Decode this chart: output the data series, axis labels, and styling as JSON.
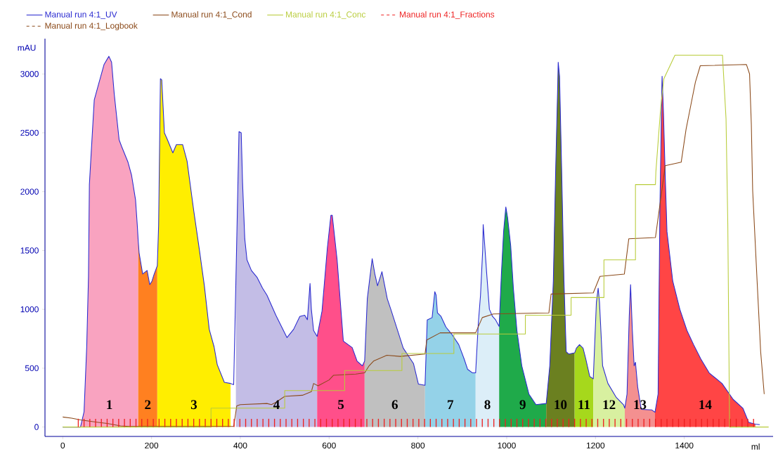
{
  "chart_data": {
    "type": "line",
    "xlabel": "ml",
    "ylabel": "mAU",
    "xlim": [
      -40,
      1600
    ],
    "ylim": [
      -80,
      3300
    ],
    "xticks": [
      0,
      200,
      400,
      600,
      800,
      1000,
      1200,
      1400
    ],
    "yticks": [
      0,
      500,
      1000,
      1500,
      2000,
      2500,
      3000
    ],
    "legend": "top left",
    "series": [
      {
        "type": "area",
        "color": "#f9a3c0",
        "x": [
          40,
          48,
          54,
          58,
          60,
          71,
          82,
          93,
          104,
          110,
          116,
          127,
          133,
          147,
          155,
          164,
          168,
          170
        ],
        "values": [
          0,
          130,
          680,
          1280,
          2060,
          2780,
          2930,
          3080,
          3150,
          3100,
          2830,
          2440,
          2380,
          2250,
          2140,
          1930,
          1710,
          1580
        ]
      },
      {
        "type": "area",
        "color": "#ff8020",
        "x": [
          170,
          172,
          180,
          190,
          196,
          201,
          206,
          213
        ],
        "values": [
          1580,
          1480,
          1300,
          1330,
          1210,
          1240,
          1300,
          1370
        ]
      },
      {
        "type": "area",
        "color": "#ffee00",
        "x": [
          213,
          216,
          220,
          223,
          229,
          236,
          248,
          256,
          270,
          280,
          295,
          308,
          319,
          330,
          341,
          348,
          364,
          378
        ],
        "values": [
          1370,
          1716,
          2960,
          2950,
          2500,
          2440,
          2330,
          2400,
          2400,
          2260,
          1840,
          1500,
          1200,
          830,
          680,
          530,
          380,
          370
        ]
      },
      {
        "type": "area",
        "color": "#c3bde6",
        "x": [
          390,
          397,
          402,
          405,
          410,
          415,
          425,
          438,
          450,
          460,
          480,
          505,
          520,
          534,
          545,
          551,
          557,
          560,
          565,
          573
        ],
        "values": [
          1240,
          2510,
          2500,
          2080,
          1600,
          1420,
          1330,
          1270,
          1180,
          1120,
          950,
          760,
          830,
          940,
          950,
          912,
          1220,
          1000,
          820,
          770
        ]
      },
      {
        "type": "area",
        "color": "#ff4f8a",
        "x": [
          573,
          584,
          596,
          604,
          607,
          618,
          632,
          652,
          663,
          675,
          680
        ],
        "values": [
          770,
          985,
          1520,
          1800,
          1800,
          1420,
          730,
          675,
          560,
          520,
          560
        ]
      },
      {
        "type": "area",
        "color": "#c0c0c0",
        "x": [
          680,
          686,
          697,
          703,
          709,
          719,
          731,
          739,
          767,
          790,
          801,
          816
        ],
        "values": [
          560,
          1090,
          1430,
          1300,
          1200,
          1320,
          1090,
          1000,
          670,
          540,
          365,
          355
        ]
      },
      {
        "type": "area",
        "color": "#94d2e8",
        "x": [
          816,
          821,
          832,
          838,
          841,
          844,
          852,
          863,
          876,
          892,
          904,
          912,
          923,
          930
        ],
        "values": [
          355,
          910,
          930,
          1150,
          1120,
          970,
          940,
          850,
          790,
          700,
          580,
          490,
          460,
          460
        ]
      },
      {
        "type": "area",
        "color": "#dceef8",
        "x": [
          930,
          936,
          941,
          946,
          947,
          950,
          955,
          961,
          968,
          975,
          983
        ],
        "values": [
          460,
          880,
          1120,
          1510,
          1720,
          1570,
          1300,
          1000,
          940,
          910,
          855
        ]
      },
      {
        "type": "area",
        "color": "#1faa4a",
        "x": [
          983,
          988,
          993,
          998,
          1002,
          1009,
          1015,
          1023,
          1034,
          1050,
          1066,
          1089
        ],
        "values": [
          855,
          1300,
          1660,
          1870,
          1780,
          1540,
          1180,
          820,
          520,
          280,
          190,
          200
        ]
      },
      {
        "type": "area",
        "color": "#6b8020",
        "x": [
          1089,
          1097,
          1105,
          1110,
          1115,
          1116,
          1119,
          1124,
          1129,
          1134,
          1140,
          1153
        ],
        "values": [
          200,
          520,
          1240,
          2140,
          2920,
          3100,
          2980,
          2140,
          1240,
          640,
          620,
          630
        ]
      },
      {
        "type": "area",
        "color": "#a6d81c",
        "x": [
          1153,
          1157,
          1164,
          1172,
          1178,
          1187,
          1195
        ],
        "values": [
          630,
          670,
          700,
          670,
          580,
          430,
          410
        ]
      },
      {
        "type": "area",
        "color": "#d8f0a0",
        "x": [
          1195,
          1202,
          1206,
          1209,
          1216,
          1228,
          1247,
          1263,
          1266
        ],
        "values": [
          410,
          1060,
          1180,
          1060,
          520,
          370,
          250,
          190,
          160
        ]
      },
      {
        "type": "area",
        "color": "#f49090",
        "x": [
          1266,
          1271,
          1276,
          1279,
          1283,
          1287,
          1290,
          1295,
          1303,
          1327,
          1334
        ],
        "values": [
          160,
          280,
          940,
          1210,
          820,
          520,
          550,
          340,
          150,
          145,
          125
        ]
      },
      {
        "type": "area",
        "color": "#ff4545",
        "x": [
          1334,
          1341,
          1345,
          1349,
          1350,
          1353,
          1357,
          1361,
          1374,
          1390,
          1406,
          1421,
          1437,
          1456,
          1485,
          1510,
          1532,
          1545,
          1560
        ],
        "values": [
          125,
          280,
          1840,
          2800,
          2980,
          2680,
          2140,
          1660,
          1240,
          1000,
          820,
          700,
          580,
          460,
          370,
          235,
          160,
          40,
          25
        ]
      },
      {
        "name": "Manual run 4:1_UV",
        "color": "#2a2ad0",
        "x": [
          0,
          40,
          48,
          54,
          58,
          60,
          71,
          82,
          93,
          104,
          110,
          116,
          127,
          133,
          147,
          155,
          164,
          168,
          170,
          172,
          180,
          190,
          196,
          201,
          206,
          213,
          216,
          220,
          223,
          229,
          236,
          248,
          256,
          270,
          280,
          295,
          308,
          319,
          330,
          341,
          348,
          364,
          378,
          385,
          390,
          397,
          402,
          405,
          410,
          415,
          425,
          438,
          450,
          460,
          480,
          505,
          520,
          534,
          545,
          551,
          557,
          560,
          565,
          573,
          584,
          596,
          604,
          607,
          618,
          632,
          652,
          663,
          675,
          680,
          686,
          697,
          703,
          709,
          719,
          731,
          739,
          767,
          790,
          801,
          816,
          821,
          832,
          838,
          841,
          844,
          852,
          863,
          876,
          892,
          904,
          912,
          923,
          930,
          936,
          941,
          946,
          947,
          950,
          955,
          961,
          968,
          975,
          983,
          988,
          993,
          998,
          1002,
          1009,
          1015,
          1023,
          1034,
          1050,
          1066,
          1089,
          1097,
          1105,
          1110,
          1115,
          1116,
          1119,
          1124,
          1129,
          1134,
          1140,
          1153,
          1157,
          1164,
          1172,
          1178,
          1187,
          1195,
          1202,
          1206,
          1209,
          1216,
          1228,
          1247,
          1263,
          1266,
          1271,
          1276,
          1279,
          1283,
          1287,
          1290,
          1295,
          1303,
          1327,
          1334,
          1341,
          1345,
          1349,
          1350,
          1353,
          1357,
          1361,
          1374,
          1390,
          1406,
          1421,
          1437,
          1456,
          1485,
          1510,
          1532,
          1545,
          1560,
          1570
        ],
        "values": [
          0,
          0,
          130,
          680,
          1280,
          2060,
          2780,
          2930,
          3080,
          3150,
          3100,
          2830,
          2440,
          2380,
          2250,
          2140,
          1930,
          1710,
          1580,
          1480,
          1300,
          1330,
          1210,
          1240,
          1300,
          1370,
          1716,
          2960,
          2950,
          2500,
          2440,
          2330,
          2400,
          2400,
          2260,
          1840,
          1500,
          1200,
          830,
          680,
          530,
          380,
          370,
          360,
          1240,
          2510,
          2500,
          2080,
          1600,
          1420,
          1330,
          1270,
          1180,
          1120,
          950,
          760,
          830,
          940,
          950,
          912,
          1220,
          1000,
          820,
          770,
          985,
          1520,
          1800,
          1800,
          1420,
          730,
          675,
          560,
          520,
          560,
          1090,
          1430,
          1300,
          1200,
          1320,
          1090,
          1000,
          670,
          540,
          365,
          355,
          910,
          930,
          1150,
          1120,
          970,
          940,
          850,
          790,
          700,
          580,
          490,
          460,
          460,
          880,
          1120,
          1510,
          1720,
          1570,
          1300,
          1000,
          940,
          910,
          855,
          1300,
          1660,
          1870,
          1780,
          1540,
          1180,
          820,
          520,
          280,
          190,
          200,
          520,
          1240,
          2140,
          2920,
          3100,
          2980,
          2140,
          1240,
          640,
          620,
          630,
          670,
          700,
          670,
          580,
          430,
          410,
          1060,
          1180,
          1060,
          520,
          370,
          250,
          190,
          160,
          280,
          940,
          1210,
          820,
          520,
          550,
          340,
          150,
          145,
          125,
          280,
          1840,
          2800,
          2980,
          2680,
          2140,
          1660,
          1240,
          1000,
          820,
          700,
          580,
          460,
          370,
          235,
          160,
          40,
          25,
          20
        ]
      },
      {
        "name": "Manual run 4:1_Cond",
        "color": "#8b4a1a",
        "x": [
          0,
          20,
          40,
          60,
          80,
          100,
          130,
          150,
          385,
          392,
          400,
          460,
          470,
          480,
          500,
          540,
          560,
          565,
          575,
          600,
          610,
          660,
          680,
          690,
          700,
          730,
          760,
          816,
          820,
          850,
          930,
          945,
          970,
          1095,
          1100,
          1195,
          1210,
          1265,
          1275,
          1335,
          1357,
          1393,
          1404,
          1415,
          1425,
          1436,
          1540,
          1547,
          1551,
          1554,
          1564,
          1572,
          1580
        ],
        "values": [
          85,
          75,
          60,
          50,
          40,
          30,
          10,
          5,
          5,
          180,
          190,
          200,
          190,
          210,
          260,
          270,
          300,
          370,
          350,
          400,
          440,
          450,
          460,
          520,
          560,
          610,
          600,
          620,
          740,
          800,
          800,
          930,
          960,
          970,
          1130,
          1140,
          1280,
          1300,
          1600,
          1610,
          2220,
          2250,
          2530,
          2740,
          2930,
          3070,
          3080,
          3000,
          2570,
          2010,
          1240,
          640,
          280
        ]
      },
      {
        "name": "Manual run 4:1_Conc",
        "color": "#b8cc3a",
        "x": [
          0,
          334,
          334,
          500,
          500,
          635,
          635,
          764,
          764,
          881,
          881,
          1042,
          1042,
          1145,
          1145,
          1219,
          1219,
          1290,
          1290,
          1335,
          1336,
          1347,
          1354,
          1379,
          1486,
          1494,
          1498,
          1502,
          1590
        ],
        "values": [
          0,
          0,
          160,
          160,
          310,
          310,
          480,
          480,
          625,
          625,
          790,
          790,
          950,
          950,
          1100,
          1100,
          1420,
          1420,
          2060,
          2060,
          2170,
          2720,
          2960,
          3160,
          3160,
          2620,
          1720,
          0,
          0
        ]
      },
      {
        "name": "Manual run 4:1_Fractions",
        "type": "bar",
        "color": "#ee2020",
        "x": [
          35,
          48,
          61,
          74,
          87,
          100,
          113,
          126,
          139,
          152,
          165,
          178,
          191,
          204,
          217,
          230,
          243,
          256,
          269,
          282,
          295,
          308,
          321,
          334,
          347,
          360,
          373,
          386,
          399,
          412,
          425,
          438,
          451,
          464,
          477,
          490,
          503,
          516,
          529,
          542,
          555,
          568,
          581,
          594,
          607,
          620,
          633,
          646,
          659,
          672,
          685,
          698,
          711,
          724,
          737,
          750,
          763,
          776,
          789,
          802,
          815,
          828,
          841,
          854,
          867,
          880,
          893,
          906,
          919,
          932,
          945,
          958,
          971,
          984,
          997,
          1010,
          1023,
          1036,
          1049,
          1062,
          1075,
          1088,
          1101,
          1114,
          1127,
          1140,
          1153,
          1166,
          1179,
          1192,
          1205,
          1218,
          1231,
          1244,
          1257,
          1270,
          1283,
          1296,
          1309,
          1322,
          1335,
          1348,
          1361,
          1374,
          1387,
          1400,
          1413,
          1426,
          1439,
          1452,
          1465,
          1478,
          1491,
          1504,
          1517,
          1530,
          1543,
          1556
        ],
        "values": [
          70,
          70,
          70,
          70,
          70,
          70,
          70,
          70,
          70,
          70,
          70,
          70,
          70,
          70,
          70,
          70,
          70,
          70,
          70,
          70,
          70,
          70,
          70,
          70,
          70,
          70,
          70,
          70,
          70,
          70,
          70,
          70,
          70,
          70,
          70,
          70,
          70,
          70,
          70,
          70,
          70,
          70,
          70,
          70,
          70,
          70,
          70,
          70,
          70,
          70,
          70,
          70,
          70,
          70,
          70,
          70,
          70,
          70,
          70,
          70,
          70,
          70,
          70,
          70,
          70,
          70,
          70,
          70,
          70,
          70,
          70,
          70,
          70,
          70,
          70,
          70,
          70,
          70,
          70,
          70,
          70,
          70,
          70,
          70,
          70,
          70,
          70,
          70,
          70,
          70,
          70,
          70,
          70,
          70,
          70,
          70,
          70,
          70,
          70,
          70,
          70,
          70,
          70,
          70,
          70,
          70,
          70,
          70,
          70,
          70,
          70,
          70,
          70,
          70,
          70,
          70,
          70,
          70
        ]
      },
      {
        "name": "Manual run 4:1_Logbook",
        "color": "#8b4a1a",
        "line_style": "dashed"
      }
    ],
    "annotations": [
      "1",
      "2",
      "3",
      "4",
      "5",
      "6",
      "7",
      "8",
      "9",
      "10",
      "11",
      "12",
      "13",
      "14"
    ]
  }
}
